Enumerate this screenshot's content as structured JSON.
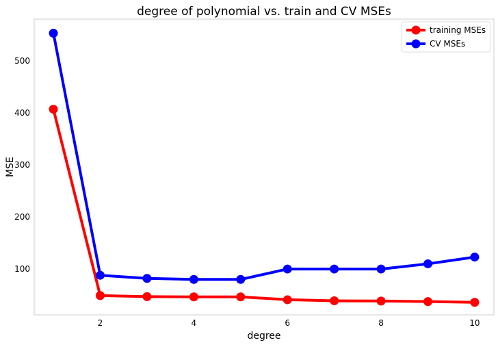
{
  "chart_data": {
    "type": "line",
    "title": "degree of polynomial vs. train and CV MSEs",
    "xlabel": "degree",
    "ylabel": "MSE",
    "x": [
      1,
      2,
      3,
      4,
      5,
      6,
      7,
      8,
      9,
      10
    ],
    "xticks": [
      2,
      4,
      6,
      8,
      10
    ],
    "yticks": [
      100,
      200,
      300,
      400,
      500
    ],
    "xlim": [
      0.59,
      10.41
    ],
    "ylim": [
      12,
      580
    ],
    "grid": false,
    "legend_position": "top-right",
    "series": [
      {
        "name": "training MSEs",
        "color": "#ff0000",
        "values": [
          407,
          49,
          47,
          46.5,
          46.5,
          41,
          39,
          38.5,
          37.5,
          36
        ]
      },
      {
        "name": "CV MSEs",
        "color": "#0000ff",
        "values": [
          553,
          88,
          82,
          80,
          80,
          100,
          100,
          100,
          110,
          123
        ]
      }
    ]
  }
}
